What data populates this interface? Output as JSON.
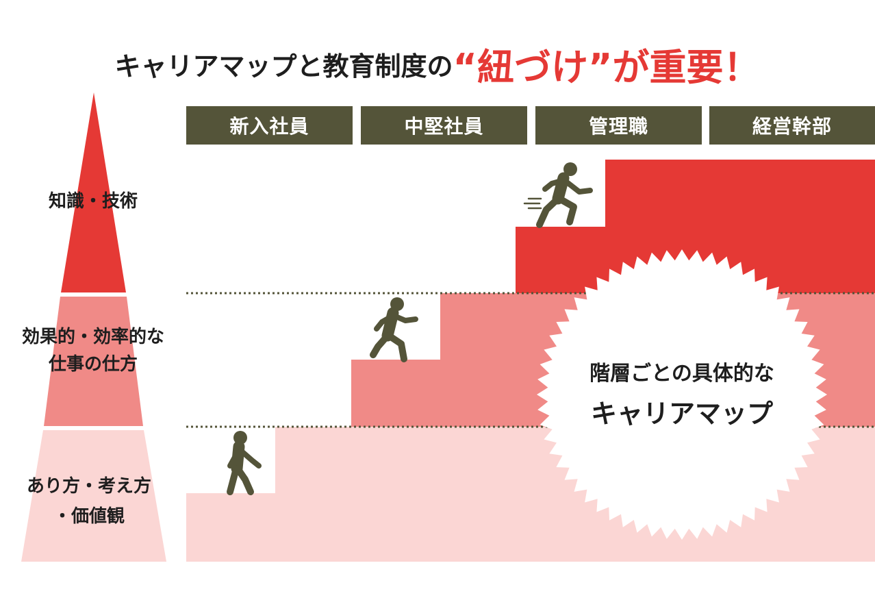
{
  "title": {
    "lead": "キャリアマップと教育制度の",
    "emphasis": "“紐づけ”が重要！"
  },
  "stages": [
    "新入社員",
    "中堅社員",
    "管理職",
    "経営幹部"
  ],
  "pyramid": {
    "top": "知識・技術",
    "middle_line1": "効果的・効率的な",
    "middle_line2": "仕事の仕方",
    "bottom_line1": "あり方・考え方",
    "bottom_line2": "・価値観"
  },
  "burst": {
    "line1": "階層ごとの具体的な",
    "line2": "キャリアマップ"
  },
  "icons": [
    "person-walking-icon",
    "person-jogging-icon",
    "person-running-icon"
  ],
  "colors": {
    "red": "#e53935",
    "mid_pink": "#f08a87",
    "light_pink": "#fbd6d4",
    "stage_bar": "#545439",
    "figure": "#545439"
  }
}
